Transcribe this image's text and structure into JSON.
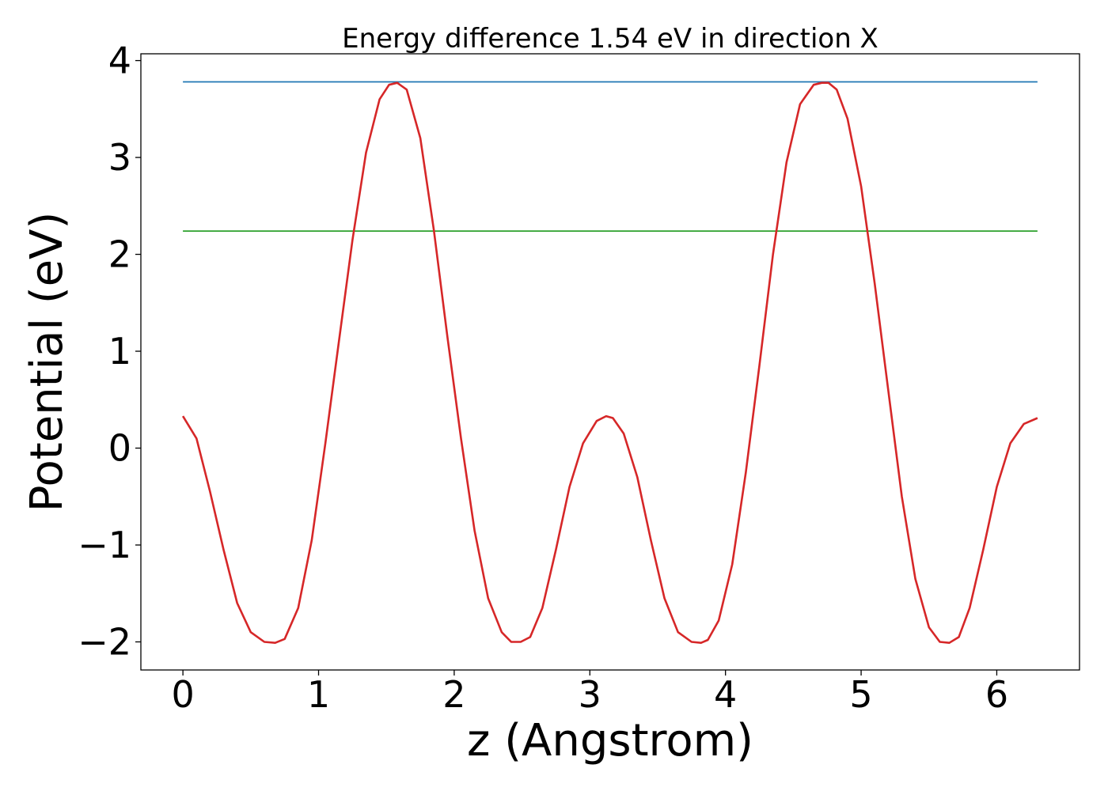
{
  "chart_data": {
    "type": "line",
    "title": "Energy difference 1.54 eV in direction X",
    "xlabel": "z (Angstrom)",
    "ylabel": "Potential (eV)",
    "xlim": [
      -0.31,
      6.61
    ],
    "ylim": [
      -2.29,
      4.07
    ],
    "x_ticks": [
      0,
      1,
      2,
      3,
      4,
      5,
      6
    ],
    "x_tick_labels": [
      "0",
      "1",
      "2",
      "3",
      "4",
      "5",
      "6"
    ],
    "y_ticks": [
      -2,
      -1,
      0,
      1,
      2,
      3,
      4
    ],
    "y_tick_labels": [
      "−2",
      "−1",
      "0",
      "1",
      "2",
      "3",
      "4"
    ],
    "grid": false,
    "series": [
      {
        "color": "#1f77b4",
        "x": [
          0.0,
          6.3
        ],
        "y": [
          3.78,
          3.78
        ]
      },
      {
        "color": "#2ca02c",
        "x": [
          0.0,
          6.3
        ],
        "y": [
          2.24,
          2.24
        ]
      },
      {
        "color": "#d62728",
        "x": [
          0.0,
          0.1,
          0.2,
          0.3,
          0.4,
          0.5,
          0.6,
          0.68,
          0.75,
          0.85,
          0.95,
          1.05,
          1.15,
          1.25,
          1.35,
          1.45,
          1.52,
          1.58,
          1.65,
          1.75,
          1.85,
          1.95,
          2.05,
          2.15,
          2.25,
          2.35,
          2.42,
          2.49,
          2.56,
          2.65,
          2.75,
          2.85,
          2.95,
          3.05,
          3.12,
          3.17,
          3.25,
          3.35,
          3.45,
          3.55,
          3.65,
          3.75,
          3.82,
          3.87,
          3.95,
          4.05,
          4.15,
          4.25,
          4.35,
          4.45,
          4.55,
          4.65,
          4.71,
          4.76,
          4.82,
          4.9,
          5.0,
          5.1,
          5.2,
          5.3,
          5.4,
          5.5,
          5.58,
          5.65,
          5.72,
          5.8,
          5.9,
          6.0,
          6.1,
          6.2,
          6.3
        ],
        "y": [
          0.33,
          0.1,
          -0.45,
          -1.05,
          -1.6,
          -1.9,
          -2.0,
          -2.01,
          -1.97,
          -1.65,
          -0.95,
          0.05,
          1.1,
          2.15,
          3.05,
          3.6,
          3.75,
          3.77,
          3.7,
          3.2,
          2.25,
          1.15,
          0.1,
          -0.85,
          -1.55,
          -1.9,
          -2.0,
          -2.0,
          -1.95,
          -1.65,
          -1.05,
          -0.4,
          0.05,
          0.28,
          0.33,
          0.31,
          0.15,
          -0.3,
          -0.95,
          -1.55,
          -1.9,
          -2.0,
          -2.01,
          -1.98,
          -1.78,
          -1.2,
          -0.25,
          0.85,
          2.0,
          2.95,
          3.55,
          3.75,
          3.77,
          3.77,
          3.7,
          3.4,
          2.7,
          1.7,
          0.6,
          -0.5,
          -1.35,
          -1.85,
          -2.0,
          -2.01,
          -1.95,
          -1.65,
          -1.05,
          -0.4,
          0.05,
          0.25,
          0.31
        ]
      }
    ]
  }
}
